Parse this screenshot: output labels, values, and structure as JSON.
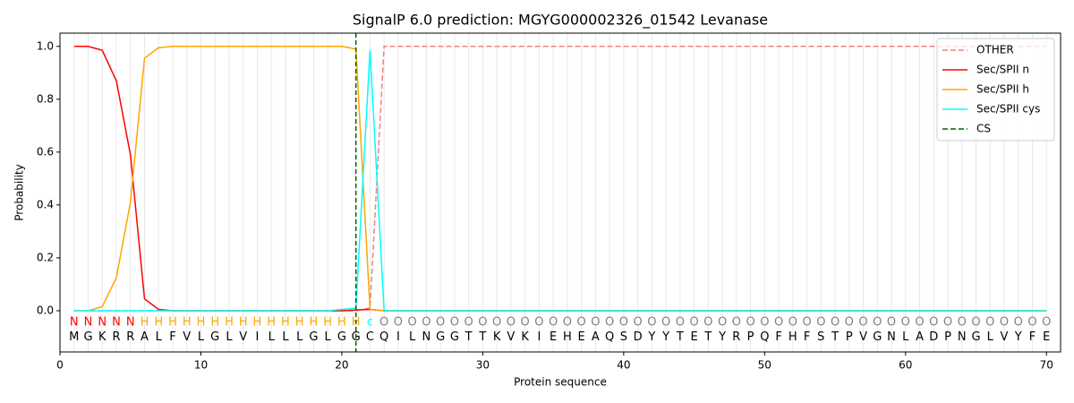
{
  "chart_data": {
    "type": "line",
    "title": "SignalP 6.0 prediction: MGYG000002326_01542 Levanase",
    "xlabel": "Protein sequence",
    "ylabel": "Probability",
    "xlim": [
      0,
      71
    ],
    "ylim": [
      -0.156,
      1.05
    ],
    "xticks": [
      0,
      10,
      20,
      30,
      40,
      50,
      60,
      70
    ],
    "yticks": [
      {
        "value": 0,
        "label": "0.0"
      },
      {
        "value": 0.2,
        "label": "0.2"
      },
      {
        "value": 0.4,
        "label": "0.4"
      },
      {
        "value": 0.6,
        "label": "0.6"
      },
      {
        "value": 0.8,
        "label": "0.8"
      },
      {
        "value": 1,
        "label": "1.0"
      }
    ],
    "legend": "upper right",
    "x": [
      1,
      2,
      3,
      4,
      5,
      6,
      7,
      8,
      9,
      10,
      11,
      12,
      13,
      14,
      15,
      16,
      17,
      18,
      19,
      20,
      21,
      22,
      23,
      24,
      25,
      26,
      27,
      28,
      29,
      30,
      31,
      32,
      33,
      34,
      35,
      36,
      37,
      38,
      39,
      40,
      41,
      42,
      43,
      44,
      45,
      46,
      47,
      48,
      49,
      50,
      51,
      52,
      53,
      54,
      55,
      56,
      57,
      58,
      59,
      60,
      61,
      62,
      63,
      64,
      65,
      66,
      67,
      68,
      69,
      70
    ],
    "sequence": [
      "M",
      "G",
      "K",
      "R",
      "R",
      "A",
      "L",
      "F",
      "V",
      "L",
      "G",
      "L",
      "V",
      "I",
      "L",
      "L",
      "L",
      "G",
      "L",
      "G",
      "G",
      "C",
      "Q",
      "I",
      "L",
      "N",
      "G",
      "G",
      "T",
      "T",
      "K",
      "V",
      "K",
      "I",
      "E",
      "H",
      "E",
      "A",
      "Q",
      "S",
      "D",
      "Y",
      "Y",
      "T",
      "E",
      "T",
      "Y",
      "R",
      "P",
      "Q",
      "F",
      "H",
      "F",
      "S",
      "T",
      "P",
      "V",
      "G",
      "N",
      "L",
      "A",
      "D",
      "P",
      "N",
      "G",
      "L",
      "V",
      "Y",
      "F",
      "E"
    ],
    "labels": [
      "N",
      "N",
      "N",
      "N",
      "N",
      "H",
      "H",
      "H",
      "H",
      "H",
      "H",
      "H",
      "H",
      "H",
      "H",
      "H",
      "H",
      "H",
      "H",
      "H",
      "H",
      "c",
      "O",
      "O",
      "O",
      "O",
      "O",
      "O",
      "O",
      "O",
      "O",
      "O",
      "O",
      "O",
      "O",
      "O",
      "O",
      "O",
      "O",
      "O",
      "O",
      "O",
      "O",
      "O",
      "O",
      "O",
      "O",
      "O",
      "O",
      "O",
      "O",
      "O",
      "O",
      "O",
      "O",
      "O",
      "O",
      "O",
      "O",
      "O",
      "O",
      "O",
      "O",
      "O",
      "O",
      "O",
      "O",
      "O",
      "O",
      "O"
    ],
    "label_colors": {
      "N": "red",
      "H": "orange",
      "c": "cyan",
      "O": "gray"
    },
    "series": [
      {
        "name": "OTHER",
        "color": "lightcoral",
        "dashed": true,
        "values": [
          0,
          0,
          0,
          0,
          0,
          0,
          0,
          0,
          0,
          0,
          0,
          0,
          0,
          0,
          0,
          0,
          0,
          0,
          0,
          0,
          0,
          0.01,
          1,
          1,
          1,
          1,
          1,
          1,
          1,
          1,
          1,
          1,
          1,
          1,
          1,
          1,
          1,
          1,
          1,
          1,
          1,
          1,
          1,
          1,
          1,
          1,
          1,
          1,
          1,
          1,
          1,
          1,
          1,
          1,
          1,
          1,
          1,
          1,
          1,
          1,
          1,
          1,
          1,
          1,
          1,
          1,
          1,
          1,
          1,
          1
        ]
      },
      {
        "name": "Sec/SPII n",
        "color": "red",
        "values": [
          1,
          1,
          0.985,
          0.87,
          0.59,
          0.045,
          0.005,
          0,
          0,
          0,
          0,
          0,
          0,
          0,
          0,
          0,
          0,
          0,
          0,
          0,
          0.003,
          0.005,
          0,
          0,
          0,
          0,
          0,
          0,
          0,
          0,
          0,
          0,
          0,
          0,
          0,
          0,
          0,
          0,
          0,
          0,
          0,
          0,
          0,
          0,
          0,
          0,
          0,
          0,
          0,
          0,
          0,
          0,
          0,
          0,
          0,
          0,
          0,
          0,
          0,
          0,
          0,
          0,
          0,
          0,
          0,
          0,
          0,
          0,
          0,
          0
        ]
      },
      {
        "name": "Sec/SPII h",
        "color": "orange",
        "values": [
          0,
          0,
          0.015,
          0.125,
          0.41,
          0.955,
          0.995,
          1,
          1,
          1,
          1,
          1,
          1,
          1,
          1,
          1,
          1,
          1,
          1,
          1,
          0.99,
          0.005,
          0,
          0,
          0,
          0,
          0,
          0,
          0,
          0,
          0,
          0,
          0,
          0,
          0,
          0,
          0,
          0,
          0,
          0,
          0,
          0,
          0,
          0,
          0,
          0,
          0,
          0,
          0,
          0,
          0,
          0,
          0,
          0,
          0,
          0,
          0,
          0,
          0,
          0,
          0,
          0,
          0,
          0,
          0,
          0,
          0,
          0,
          0,
          0
        ]
      },
      {
        "name": "Sec/SPII cys",
        "color": "cyan",
        "values": [
          0,
          0,
          0,
          0,
          0,
          0,
          0,
          0,
          0,
          0,
          0,
          0,
          0,
          0,
          0,
          0,
          0,
          0,
          0,
          0.005,
          0.01,
          0.985,
          0,
          0,
          0,
          0,
          0,
          0,
          0,
          0,
          0,
          0,
          0,
          0,
          0,
          0,
          0,
          0,
          0,
          0,
          0,
          0,
          0,
          0,
          0,
          0,
          0,
          0,
          0,
          0,
          0,
          0,
          0,
          0,
          0,
          0,
          0,
          0,
          0,
          0,
          0,
          0,
          0,
          0,
          0,
          0,
          0,
          0,
          0,
          0
        ]
      }
    ],
    "cs": {
      "name": "CS",
      "x": 21,
      "color": "darkgreen"
    }
  }
}
